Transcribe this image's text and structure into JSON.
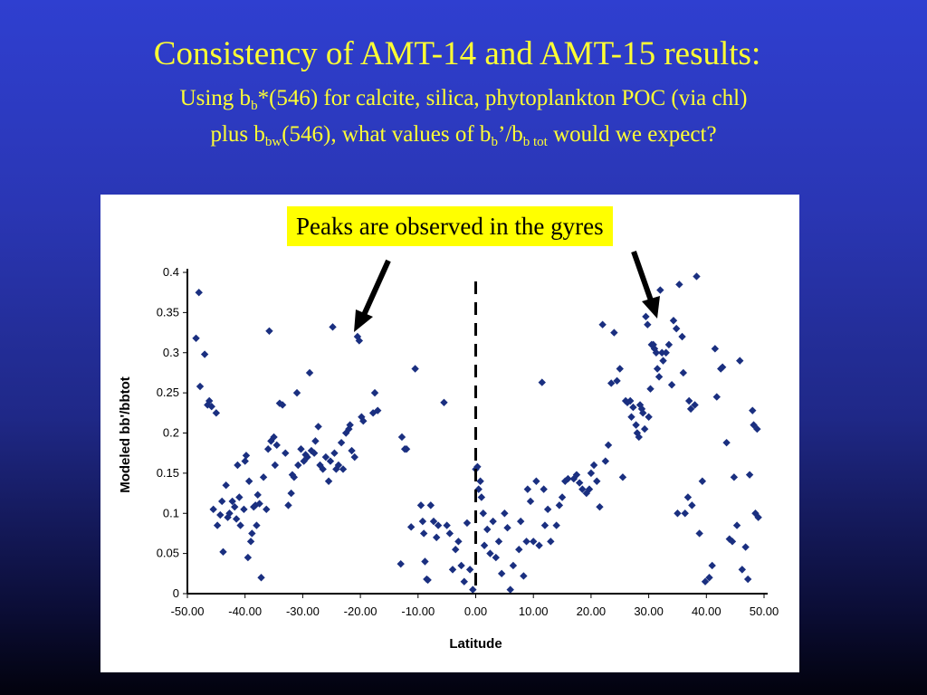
{
  "slide": {
    "title": "Consistency of AMT-14 and AMT-15 results:",
    "subtitle_line1": {
      "p1": "Using b",
      "s1": "b",
      "p2": "*(546) for calcite, silica, phytoplankton POC (via chl)"
    },
    "subtitle_line2": {
      "p1": "plus b",
      "s1": "bw",
      "p2": "(546), what values of b",
      "s2": "b",
      "p3": "’/b",
      "s3": "b tot",
      "p4": " would we expect?"
    },
    "callout": "Peaks are observed in the gyres",
    "text_color": "#ffff33",
    "callout_bg": "#ffff00"
  },
  "chart_data": {
    "type": "scatter",
    "title": "",
    "xlabel": "Latitude",
    "ylabel": "Modeled bb'/bbtot",
    "xlim": [
      -50,
      50
    ],
    "ylim": [
      0,
      0.4
    ],
    "x_ticks": [
      "-50.00",
      "-40.00",
      "-30.00",
      "-20.00",
      "-10.00",
      "0.00",
      "10.00",
      "20.00",
      "30.00",
      "40.00",
      "50.00"
    ],
    "y_ticks": [
      "0",
      "0.05",
      "0.1",
      "0.15",
      "0.2",
      "0.25",
      "0.3",
      "0.35",
      "0.4"
    ],
    "grid": false,
    "legend": "none",
    "vertical_reference_line": 0,
    "marker": "diamond",
    "marker_color": "#1a2f80",
    "points": [
      [
        -48.5,
        0.318
      ],
      [
        -48,
        0.375
      ],
      [
        -47.8,
        0.258
      ],
      [
        -47,
        0.298
      ],
      [
        -46.5,
        0.235
      ],
      [
        -46.2,
        0.24
      ],
      [
        -45.8,
        0.233
      ],
      [
        -45.5,
        0.105
      ],
      [
        -45,
        0.225
      ],
      [
        -44.8,
        0.085
      ],
      [
        -44.3,
        0.098
      ],
      [
        -44,
        0.115
      ],
      [
        -43.8,
        0.052
      ],
      [
        -43.3,
        0.135
      ],
      [
        -43,
        0.095
      ],
      [
        -42.7,
        0.1
      ],
      [
        -42.2,
        0.115
      ],
      [
        -41.8,
        0.108
      ],
      [
        -41.5,
        0.093
      ],
      [
        -41.3,
        0.16
      ],
      [
        -41,
        0.12
      ],
      [
        -40.8,
        0.085
      ],
      [
        -40.2,
        0.105
      ],
      [
        -40,
        0.165
      ],
      [
        -39.8,
        0.172
      ],
      [
        -39.5,
        0.045
      ],
      [
        -39.3,
        0.14
      ],
      [
        -39,
        0.065
      ],
      [
        -38.8,
        0.075
      ],
      [
        -38.5,
        0.108
      ],
      [
        -38.2,
        0.11
      ],
      [
        -38,
        0.085
      ],
      [
        -37.8,
        0.123
      ],
      [
        -37.5,
        0.112
      ],
      [
        -37.2,
        0.02
      ],
      [
        -36.8,
        0.145
      ],
      [
        -36.3,
        0.105
      ],
      [
        -36,
        0.18
      ],
      [
        -35.8,
        0.327
      ],
      [
        -35.5,
        0.19
      ],
      [
        -35,
        0.195
      ],
      [
        -34.8,
        0.16
      ],
      [
        -34.5,
        0.185
      ],
      [
        -34,
        0.237
      ],
      [
        -33.5,
        0.235
      ],
      [
        -33,
        0.175
      ],
      [
        -32.5,
        0.11
      ],
      [
        -32,
        0.125
      ],
      [
        -31.8,
        0.148
      ],
      [
        -31.5,
        0.145
      ],
      [
        -31,
        0.25
      ],
      [
        -30.8,
        0.16
      ],
      [
        -30.3,
        0.18
      ],
      [
        -29.8,
        0.165
      ],
      [
        -29.5,
        0.173
      ],
      [
        -29.2,
        0.17
      ],
      [
        -28.8,
        0.275
      ],
      [
        -28.5,
        0.178
      ],
      [
        -28,
        0.175
      ],
      [
        -27.8,
        0.19
      ],
      [
        -27.3,
        0.208
      ],
      [
        -27,
        0.16
      ],
      [
        -26.5,
        0.155
      ],
      [
        -26,
        0.17
      ],
      [
        -25.5,
        0.14
      ],
      [
        -25.2,
        0.165
      ],
      [
        -24.8,
        0.332
      ],
      [
        -24.5,
        0.175
      ],
      [
        -24.2,
        0.155
      ],
      [
        -23.8,
        0.16
      ],
      [
        -23.3,
        0.188
      ],
      [
        -23,
        0.155
      ],
      [
        -22.5,
        0.2
      ],
      [
        -22,
        0.205
      ],
      [
        -21.8,
        0.21
      ],
      [
        -21.5,
        0.178
      ],
      [
        -21,
        0.17
      ],
      [
        -20.5,
        0.32
      ],
      [
        -20.2,
        0.315
      ],
      [
        -19.8,
        0.22
      ],
      [
        -19.5,
        0.215
      ],
      [
        -17.8,
        0.225
      ],
      [
        -17.5,
        0.25
      ],
      [
        -17,
        0.228
      ],
      [
        -13,
        0.037
      ],
      [
        -12.8,
        0.195
      ],
      [
        -12.3,
        0.18
      ],
      [
        -12,
        0.18
      ],
      [
        -11.2,
        0.083
      ],
      [
        -10.5,
        0.28
      ],
      [
        -9.5,
        0.11
      ],
      [
        -9.2,
        0.09
      ],
      [
        -9,
        0.075
      ],
      [
        -8.8,
        0.04
      ],
      [
        -8.5,
        0.018
      ],
      [
        -8.3,
        0.017
      ],
      [
        -7.8,
        0.11
      ],
      [
        -7.3,
        0.09
      ],
      [
        -6.8,
        0.07
      ],
      [
        -6.5,
        0.085
      ],
      [
        -5.5,
        0.238
      ],
      [
        -5,
        0.085
      ],
      [
        -4.5,
        0.075
      ],
      [
        -4,
        0.03
      ],
      [
        -3.5,
        0.055
      ],
      [
        -3,
        0.065
      ],
      [
        -2.5,
        0.035
      ],
      [
        -2,
        0.015
      ],
      [
        -1.5,
        0.088
      ],
      [
        -1,
        0.03
      ],
      [
        -0.5,
        0.005
      ],
      [
        0,
        0.155
      ],
      [
        0.3,
        0.158
      ],
      [
        0.5,
        0.13
      ],
      [
        0.8,
        0.14
      ],
      [
        1,
        0.12
      ],
      [
        1.3,
        0.1
      ],
      [
        1.5,
        0.06
      ],
      [
        2,
        0.08
      ],
      [
        2.5,
        0.05
      ],
      [
        3,
        0.09
      ],
      [
        3.5,
        0.045
      ],
      [
        4,
        0.065
      ],
      [
        4.5,
        0.025
      ],
      [
        5,
        0.1
      ],
      [
        5.5,
        0.082
      ],
      [
        6,
        0.005
      ],
      [
        6.5,
        0.035
      ],
      [
        7.5,
        0.055
      ],
      [
        7.8,
        0.09
      ],
      [
        8.3,
        0.022
      ],
      [
        8.8,
        0.065
      ],
      [
        9,
        0.13
      ],
      [
        9.5,
        0.115
      ],
      [
        10,
        0.065
      ],
      [
        10.5,
        0.14
      ],
      [
        11,
        0.06
      ],
      [
        11.5,
        0.263
      ],
      [
        11.8,
        0.13
      ],
      [
        12,
        0.085
      ],
      [
        12.5,
        0.105
      ],
      [
        13,
        0.065
      ],
      [
        14,
        0.085
      ],
      [
        14.5,
        0.11
      ],
      [
        15,
        0.12
      ],
      [
        15.5,
        0.14
      ],
      [
        16,
        0.143
      ],
      [
        17,
        0.143
      ],
      [
        17.5,
        0.148
      ],
      [
        18,
        0.138
      ],
      [
        18.5,
        0.13
      ],
      [
        19.2,
        0.125
      ],
      [
        19.7,
        0.13
      ],
      [
        20,
        0.15
      ],
      [
        20.5,
        0.16
      ],
      [
        21,
        0.14
      ],
      [
        21.5,
        0.108
      ],
      [
        22,
        0.335
      ],
      [
        22.5,
        0.165
      ],
      [
        23,
        0.185
      ],
      [
        23.5,
        0.262
      ],
      [
        24,
        0.325
      ],
      [
        24.5,
        0.265
      ],
      [
        25,
        0.28
      ],
      [
        25.5,
        0.145
      ],
      [
        26,
        0.24
      ],
      [
        26.3,
        0.238
      ],
      [
        26.8,
        0.24
      ],
      [
        27,
        0.22
      ],
      [
        27.3,
        0.232
      ],
      [
        27.8,
        0.21
      ],
      [
        28,
        0.2
      ],
      [
        28.3,
        0.195
      ],
      [
        28.5,
        0.235
      ],
      [
        28.8,
        0.23
      ],
      [
        29,
        0.225
      ],
      [
        29.3,
        0.205
      ],
      [
        29.5,
        0.345
      ],
      [
        29.8,
        0.335
      ],
      [
        30,
        0.22
      ],
      [
        30.3,
        0.255
      ],
      [
        30.5,
        0.31
      ],
      [
        30.8,
        0.31
      ],
      [
        31,
        0.305
      ],
      [
        31.3,
        0.3
      ],
      [
        31.5,
        0.28
      ],
      [
        31.8,
        0.27
      ],
      [
        32,
        0.378
      ],
      [
        32.3,
        0.3
      ],
      [
        32.5,
        0.29
      ],
      [
        33,
        0.3
      ],
      [
        33.5,
        0.31
      ],
      [
        34,
        0.26
      ],
      [
        34.3,
        0.34
      ],
      [
        34.8,
        0.33
      ],
      [
        35,
        0.1
      ],
      [
        35.3,
        0.385
      ],
      [
        35.8,
        0.32
      ],
      [
        36,
        0.275
      ],
      [
        36.3,
        0.1
      ],
      [
        36.8,
        0.12
      ],
      [
        37,
        0.24
      ],
      [
        37.3,
        0.23
      ],
      [
        37.5,
        0.11
      ],
      [
        38,
        0.235
      ],
      [
        38.3,
        0.395
      ],
      [
        38.8,
        0.075
      ],
      [
        39.3,
        0.14
      ],
      [
        39.8,
        0.015
      ],
      [
        40.5,
        0.02
      ],
      [
        41,
        0.035
      ],
      [
        41.5,
        0.305
      ],
      [
        41.8,
        0.245
      ],
      [
        42.5,
        0.28
      ],
      [
        42.8,
        0.282
      ],
      [
        43.5,
        0.188
      ],
      [
        44,
        0.068
      ],
      [
        44.5,
        0.065
      ],
      [
        44.8,
        0.145
      ],
      [
        45.3,
        0.085
      ],
      [
        45.8,
        0.29
      ],
      [
        46.2,
        0.03
      ],
      [
        46.8,
        0.058
      ],
      [
        47.2,
        0.018
      ],
      [
        47.5,
        0.148
      ],
      [
        48,
        0.228
      ],
      [
        48.2,
        0.21
      ],
      [
        48.5,
        0.1
      ],
      [
        48.8,
        0.205
      ],
      [
        49,
        0.095
      ]
    ]
  }
}
